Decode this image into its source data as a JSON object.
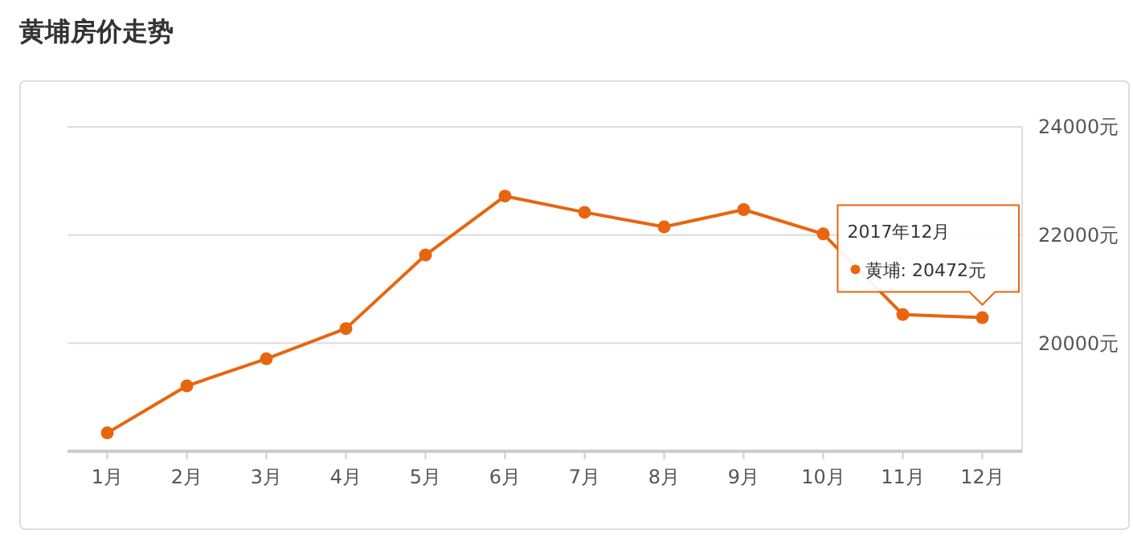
{
  "chart_data": {
    "type": "line",
    "title": "黄埔房价走势",
    "categories": [
      "1月",
      "2月",
      "3月",
      "4月",
      "5月",
      "6月",
      "7月",
      "8月",
      "9月",
      "10月",
      "11月",
      "12月"
    ],
    "series": [
      {
        "color": "#e8650f",
        "values": [
          18340,
          19210,
          19710,
          20270,
          21630,
          22720,
          22420,
          22150,
          22470,
          22020,
          20530,
          20472
        ]
      }
    ],
    "ylim": [
      18000,
      24000
    ],
    "yticks": [
      {
        "value": 20000,
        "label": "20000元"
      },
      {
        "value": 22000,
        "label": "22000元"
      },
      {
        "value": 24000,
        "label": "24000元"
      }
    ],
    "grid": "y",
    "marker": "circle",
    "line_style": "solid",
    "annotations": [
      "2017年12月",
      "黄埔: 20472元"
    ]
  }
}
